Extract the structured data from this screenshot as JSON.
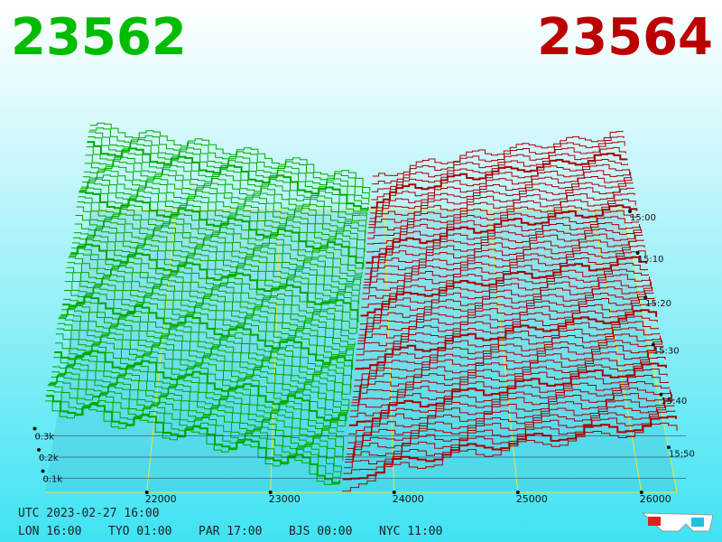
{
  "header": {
    "bid": "23562",
    "ask": "23564"
  },
  "price_axis": {
    "ticks": [
      22000,
      23000,
      24000,
      25000,
      26000
    ]
  },
  "depth_axis": {
    "ticks": [
      {
        "value": 0.3,
        "label": "0.3k"
      },
      {
        "value": 0.2,
        "label": "0.2k"
      },
      {
        "value": 0.1,
        "label": "0.1k"
      }
    ]
  },
  "time_axis": {
    "ticks": [
      "15:00",
      "15:10",
      "15:20",
      "15:30",
      "15:40",
      "15:50"
    ]
  },
  "footer": {
    "utc": "UTC 2023-02-27 16:00",
    "clocks": [
      "LON 16:00",
      "TYO 01:00",
      "PAR 17:00",
      "BJS 00:00",
      "NYC 11:00"
    ]
  }
}
